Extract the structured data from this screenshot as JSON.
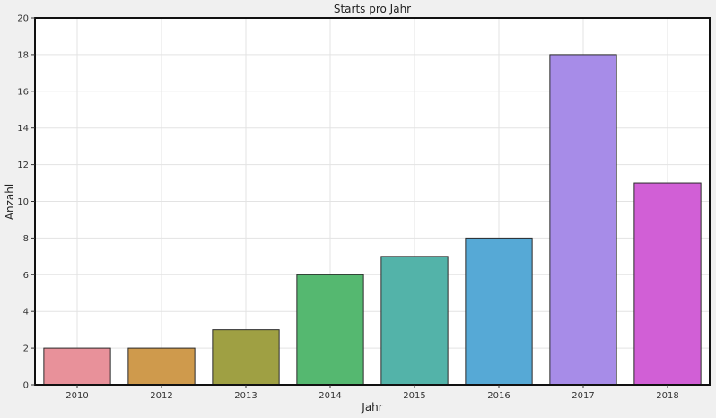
{
  "chart_data": {
    "type": "bar",
    "title": "Starts pro Jahr",
    "xlabel": "Jahr",
    "ylabel": "Anzahl",
    "categories": [
      "2010",
      "2012",
      "2013",
      "2014",
      "2015",
      "2016",
      "2017",
      "2018"
    ],
    "values": [
      2,
      2,
      3,
      6,
      7,
      8,
      18,
      11
    ],
    "colors": [
      "#e8919a",
      "#cf9a4c",
      "#9fa043",
      "#55b870",
      "#53b3a9",
      "#56a9d6",
      "#a78ce8",
      "#d15fd6"
    ],
    "ylim": [
      0,
      20
    ],
    "yticks": [
      0,
      2,
      4,
      6,
      8,
      10,
      12,
      14,
      16,
      18,
      20
    ],
    "grid": true,
    "background": "#ffffff",
    "frame_color": "#111111"
  }
}
